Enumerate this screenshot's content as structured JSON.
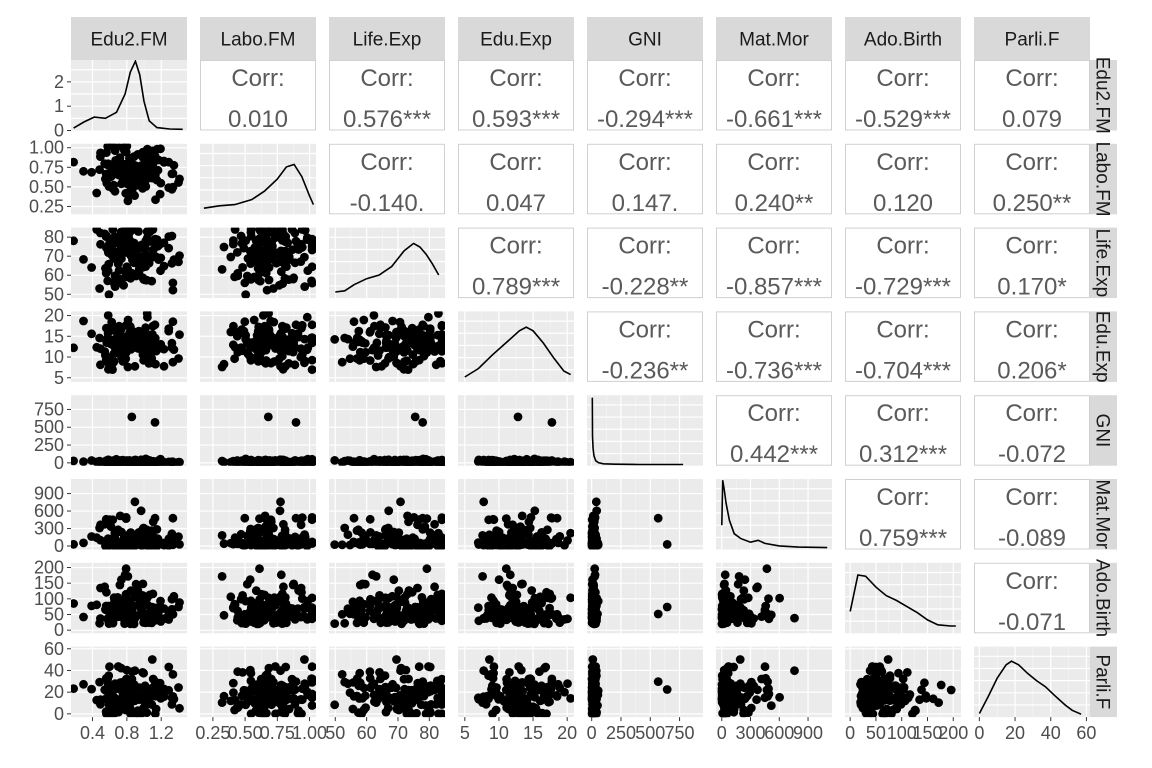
{
  "chart_data": {
    "type": "scatter",
    "subtype": "pairs-matrix",
    "variables": [
      "Edu2.FM",
      "Labo.FM",
      "Life.Exp",
      "Edu.Exp",
      "GNI",
      "Mat.Mor",
      "Ado.Birth",
      "Parli.F"
    ],
    "column_strip_labels": [
      "Edu2.FM",
      "Labo.FM",
      "Life.Exp",
      "Edu.Exp",
      "GNI",
      "Mat.Mor",
      "Ado.Birth",
      "Parli.F"
    ],
    "row_strip_labels": [
      "Edu2.FM",
      "Labo.FM",
      "Life.Exp",
      "Edu.Exp",
      "GNI",
      "Mat.Mor",
      "Ado.Birth",
      "Parli.F"
    ],
    "ranges": [
      [
        0.15,
        1.5
      ],
      [
        0.15,
        1.05
      ],
      [
        48,
        85
      ],
      [
        4,
        21
      ],
      [
        -40,
        950
      ],
      [
        -60,
        1150
      ],
      [
        -10,
        215
      ],
      [
        -3,
        62
      ]
    ],
    "y_ticks": [
      {
        "values": [
          0,
          1,
          2
        ],
        "labels": [
          "0",
          "1",
          "2"
        ]
      },
      {
        "values": [
          0.25,
          0.5,
          0.75,
          1.0
        ],
        "labels": [
          "0.25",
          "0.50",
          "0.75",
          "1.00"
        ]
      },
      {
        "values": [
          50,
          60,
          70,
          80
        ],
        "labels": [
          "50",
          "60",
          "70",
          "80"
        ]
      },
      {
        "values": [
          5,
          10,
          15,
          20
        ],
        "labels": [
          "5",
          "10",
          "15",
          "20"
        ]
      },
      {
        "values": [
          0,
          250,
          500,
          750
        ],
        "labels": [
          "0",
          "250",
          "500",
          "750"
        ]
      },
      {
        "values": [
          0,
          300,
          600,
          900
        ],
        "labels": [
          "0",
          "300",
          "600",
          "900"
        ]
      },
      {
        "values": [
          0,
          50,
          100,
          150,
          200
        ],
        "labels": [
          "0",
          "50",
          "100",
          "150",
          "200"
        ]
      },
      {
        "values": [
          0,
          20,
          40,
          60
        ],
        "labels": [
          "0",
          "20",
          "40",
          "60"
        ]
      }
    ],
    "x_ticks": [
      {
        "values": [
          0.4,
          0.8,
          1.2
        ],
        "labels": [
          "0.4",
          "0.8",
          "1.2"
        ]
      },
      {
        "values": [
          0.25,
          0.5,
          0.75,
          1.0
        ],
        "labels": [
          "0.25",
          "0.50",
          "0.75",
          "1.00"
        ]
      },
      {
        "values": [
          50,
          60,
          70,
          80
        ],
        "labels": [
          "50",
          "60",
          "70",
          "80"
        ]
      },
      {
        "values": [
          5,
          10,
          15,
          20
        ],
        "labels": [
          "5",
          "10",
          "15",
          "20"
        ]
      },
      {
        "values": [
          0,
          250,
          500,
          750
        ],
        "labels": [
          "0",
          "250",
          "500",
          "750"
        ]
      },
      {
        "values": [
          0,
          300,
          600,
          900
        ],
        "labels": [
          "0",
          "300",
          "600",
          "900"
        ]
      },
      {
        "values": [
          0,
          50,
          100,
          150,
          200
        ],
        "labels": [
          "0",
          "50",
          "100",
          "150",
          "200"
        ]
      },
      {
        "values": [
          0,
          20,
          40,
          60
        ],
        "labels": [
          "0",
          "20",
          "40",
          "60"
        ]
      }
    ],
    "density_y_range": [
      0,
      2.9
    ],
    "correlation_label": "Corr:",
    "correlations": [
      {
        "row": 0,
        "col": 1,
        "value": "0.010"
      },
      {
        "row": 0,
        "col": 2,
        "value": "0.576***"
      },
      {
        "row": 0,
        "col": 3,
        "value": "0.593***"
      },
      {
        "row": 0,
        "col": 4,
        "value": "-0.294***"
      },
      {
        "row": 0,
        "col": 5,
        "value": "-0.661***"
      },
      {
        "row": 0,
        "col": 6,
        "value": "-0.529***"
      },
      {
        "row": 0,
        "col": 7,
        "value": "0.079"
      },
      {
        "row": 1,
        "col": 2,
        "value": "-0.140."
      },
      {
        "row": 1,
        "col": 3,
        "value": "0.047"
      },
      {
        "row": 1,
        "col": 4,
        "value": "0.147."
      },
      {
        "row": 1,
        "col": 5,
        "value": "0.240**"
      },
      {
        "row": 1,
        "col": 6,
        "value": "0.120"
      },
      {
        "row": 1,
        "col": 7,
        "value": "0.250**"
      },
      {
        "row": 2,
        "col": 3,
        "value": "0.789***"
      },
      {
        "row": 2,
        "col": 4,
        "value": "-0.228**"
      },
      {
        "row": 2,
        "col": 5,
        "value": "-0.857***"
      },
      {
        "row": 2,
        "col": 6,
        "value": "-0.729***"
      },
      {
        "row": 2,
        "col": 7,
        "value": "0.170*"
      },
      {
        "row": 3,
        "col": 4,
        "value": "-0.236**"
      },
      {
        "row": 3,
        "col": 5,
        "value": "-0.736***"
      },
      {
        "row": 3,
        "col": 6,
        "value": "-0.704***"
      },
      {
        "row": 3,
        "col": 7,
        "value": "0.206*"
      },
      {
        "row": 4,
        "col": 5,
        "value": "0.442***"
      },
      {
        "row": 4,
        "col": 6,
        "value": "0.312***"
      },
      {
        "row": 4,
        "col": 7,
        "value": "-0.072"
      },
      {
        "row": 5,
        "col": 6,
        "value": "0.759***"
      },
      {
        "row": 5,
        "col": 7,
        "value": "-0.089"
      },
      {
        "row": 6,
        "col": 7,
        "value": "-0.071"
      }
    ],
    "densities": [
      {
        "x": [
          0.18,
          0.3,
          0.42,
          0.55,
          0.68,
          0.78,
          0.84,
          0.9,
          0.95,
          1.0,
          1.06,
          1.15,
          1.3,
          1.45
        ],
        "y": [
          0.1,
          0.35,
          0.55,
          0.5,
          0.75,
          1.5,
          2.4,
          2.85,
          2.3,
          1.2,
          0.4,
          0.12,
          0.06,
          0.05
        ]
      },
      {
        "x": [
          0.18,
          0.3,
          0.42,
          0.55,
          0.65,
          0.75,
          0.82,
          0.88,
          0.94,
          1.0,
          1.03
        ],
        "y": [
          0.25,
          0.35,
          0.4,
          0.6,
          0.95,
          1.45,
          1.95,
          2.05,
          1.55,
          0.75,
          0.4
        ]
      },
      {
        "x": [
          50,
          53,
          56,
          60,
          64,
          68,
          72,
          75,
          77,
          79,
          81,
          83
        ],
        "y": [
          0.25,
          0.3,
          0.55,
          0.8,
          0.95,
          1.3,
          1.95,
          2.25,
          2.1,
          1.8,
          1.4,
          0.95
        ]
      },
      {
        "x": [
          5,
          7,
          9,
          11,
          13,
          14,
          15,
          16.5,
          18,
          19.5,
          20.5
        ],
        "y": [
          0.2,
          0.55,
          1.1,
          1.6,
          2.1,
          2.25,
          2.1,
          1.6,
          1.0,
          0.45,
          0.3
        ]
      },
      {
        "x": [
          5,
          7,
          12,
          20,
          35,
          60,
          100,
          200,
          400,
          600,
          780
        ],
        "y": [
          2.8,
          1.2,
          0.7,
          0.4,
          0.2,
          0.12,
          0.08,
          0.06,
          0.05,
          0.05,
          0.05
        ]
      },
      {
        "x": [
          0,
          10,
          25,
          45,
          80,
          130,
          200,
          300,
          380,
          450,
          600,
          800,
          1100
        ],
        "y": [
          1.0,
          2.85,
          2.5,
          1.9,
          1.2,
          0.65,
          0.45,
          0.3,
          0.38,
          0.25,
          0.15,
          0.1,
          0.08
        ]
      },
      {
        "x": [
          0,
          15,
          30,
          50,
          70,
          90,
          110,
          130,
          150,
          170,
          195,
          205
        ],
        "y": [
          0.9,
          2.4,
          2.35,
          1.9,
          1.55,
          1.35,
          1.1,
          0.85,
          0.55,
          0.35,
          0.3,
          0.3
        ]
      },
      {
        "x": [
          0,
          5,
          10,
          15,
          18,
          22,
          27,
          32,
          37,
          42,
          48,
          52,
          57
        ],
        "y": [
          0.15,
          0.85,
          1.6,
          2.15,
          2.3,
          2.15,
          1.8,
          1.5,
          1.25,
          0.9,
          0.5,
          0.28,
          0.12
        ]
      }
    ]
  }
}
